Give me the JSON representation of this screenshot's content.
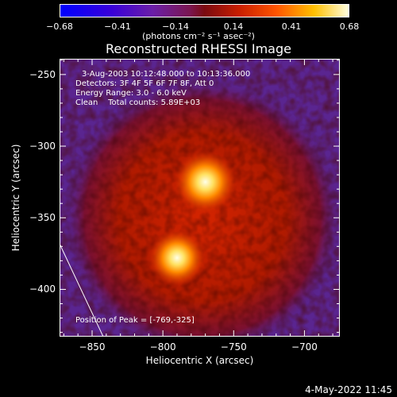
{
  "colorbar": {
    "tick_labels": [
      "-0.68",
      "-0.41",
      "-0.14",
      "0.14",
      "0.41",
      "0.68"
    ],
    "units": "(photons cm⁻² s⁻¹ asec⁻²)",
    "range": [
      -0.68,
      0.68
    ]
  },
  "title": "Reconstructed RHESSI Image",
  "annotations": {
    "time_range": "3-Aug-2003 10:12:48.000 to 10:13:36.000",
    "detectors": "Detectors: 3F 4F 5F 6F 7F 8F, Att 0",
    "energy_range": "Energy Range: 3.0 - 6.0 keV",
    "method_counts": "Clean    Total counts: 5.89E+03",
    "peak": "Position of Peak = [-769,-325]"
  },
  "axes": {
    "xlabel": "Heliocentric X (arcsec)",
    "ylabel": "Heliocentric Y (arcsec)",
    "xlim": [
      -873,
      -675
    ],
    "ylim": [
      -433,
      -239
    ],
    "xticks": [
      {
        "value": -850,
        "label": "−850"
      },
      {
        "value": -800,
        "label": "−800"
      },
      {
        "value": -750,
        "label": "−750"
      },
      {
        "value": -700,
        "label": "−700"
      }
    ],
    "yticks": [
      {
        "value": -250,
        "label": "−250"
      },
      {
        "value": -300,
        "label": "−300"
      },
      {
        "value": -350,
        "label": "−350"
      },
      {
        "value": -400,
        "label": "−400"
      }
    ]
  },
  "sources": [
    {
      "x": -770,
      "y": -325,
      "intensity": 0.68
    },
    {
      "x": -790,
      "y": -378,
      "intensity": 0.62
    }
  ],
  "datestamp": "4-May-2022 11:45"
}
